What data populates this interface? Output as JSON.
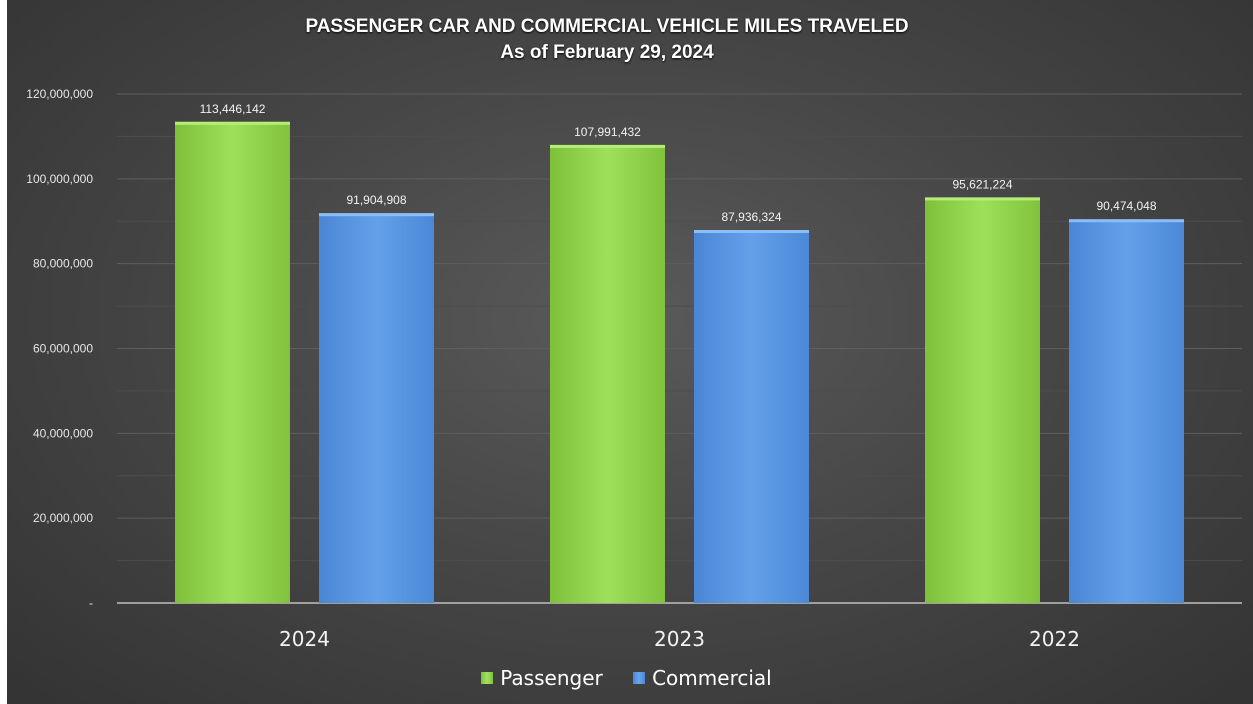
{
  "chart_data": {
    "type": "bar",
    "title": "PASSENGER CAR AND COMMERCIAL VEHICLE MILES TRAVELED",
    "subtitle": "As of February 29, 2024",
    "xlabel": "",
    "ylabel": "",
    "categories": [
      "2024",
      "2023",
      "2022"
    ],
    "series": [
      {
        "name": "Passenger",
        "color": "#92d050",
        "values": [
          113446142,
          107991432,
          95621224
        ],
        "labels": [
          "113,446,142",
          "107,991,432",
          "95,621,224"
        ]
      },
      {
        "name": "Commercial",
        "color": "#5b97e0",
        "values": [
          91904908,
          87936324,
          90474048
        ],
        "labels": [
          "91,904,908",
          "87,936,324",
          "90,474,048"
        ]
      }
    ],
    "ylim": [
      0,
      120000000
    ],
    "yticks": [
      0,
      20000000,
      40000000,
      60000000,
      80000000,
      100000000,
      120000000
    ],
    "ytick_labels": [
      "-",
      "20,000,000",
      "40,000,000",
      "60,000,000",
      "80,000,000",
      "100,000,000",
      "120,000,000"
    ],
    "grid": true,
    "legend_position": "bottom"
  }
}
